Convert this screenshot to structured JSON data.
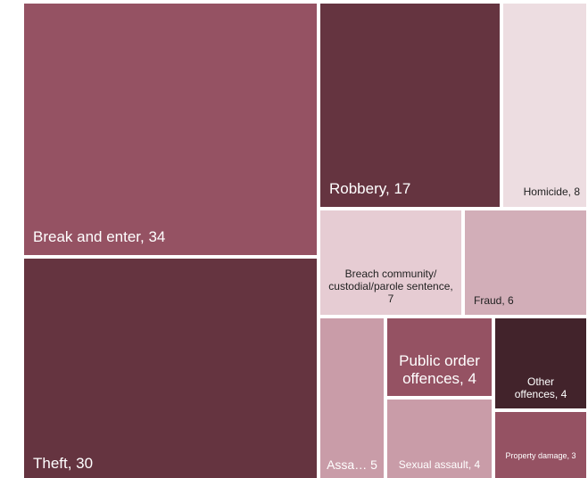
{
  "chart_data": {
    "type": "treemap",
    "items": [
      {
        "label": "Break and enter, 34",
        "name": "Break and enter",
        "value": 34,
        "color": "#955263",
        "text_color": "light"
      },
      {
        "label": "Theft, 30",
        "name": "Theft",
        "value": 30,
        "color": "#653440",
        "text_color": "light"
      },
      {
        "label": "Robbery, 17",
        "name": "Robbery",
        "value": 17,
        "color": "#653440",
        "text_color": "light"
      },
      {
        "label": "Homicide, 8",
        "name": "Homicide",
        "value": 8,
        "color": "#eddde1",
        "text_color": "dark"
      },
      {
        "label": "Breach community/ custodial/parole sentence, 7",
        "name": "Breach community/custodial/parole sentence",
        "value": 7,
        "color": "#e6ccd3",
        "text_color": "dark"
      },
      {
        "label": "Fraud, 6",
        "name": "Fraud",
        "value": 6,
        "color": "#d2aeb8",
        "text_color": "dark"
      },
      {
        "label": "Assa… 5",
        "name": "Assault",
        "value": 5,
        "color": "#c99ca8",
        "text_color": "light"
      },
      {
        "label": "Public order offences, 4",
        "name": "Public order offences",
        "value": 4,
        "color": "#955263",
        "text_color": "light"
      },
      {
        "label": "Other offences, 4",
        "name": "Other offences",
        "value": 4,
        "color": "#42232b",
        "text_color": "light"
      },
      {
        "label": "Sexual assault, 4",
        "name": "Sexual assault",
        "value": 4,
        "color": "#c99ca8",
        "text_color": "light"
      },
      {
        "label": "Property damage, 3",
        "name": "Property damage",
        "value": 3,
        "color": "#955263",
        "text_color": "light"
      }
    ]
  }
}
